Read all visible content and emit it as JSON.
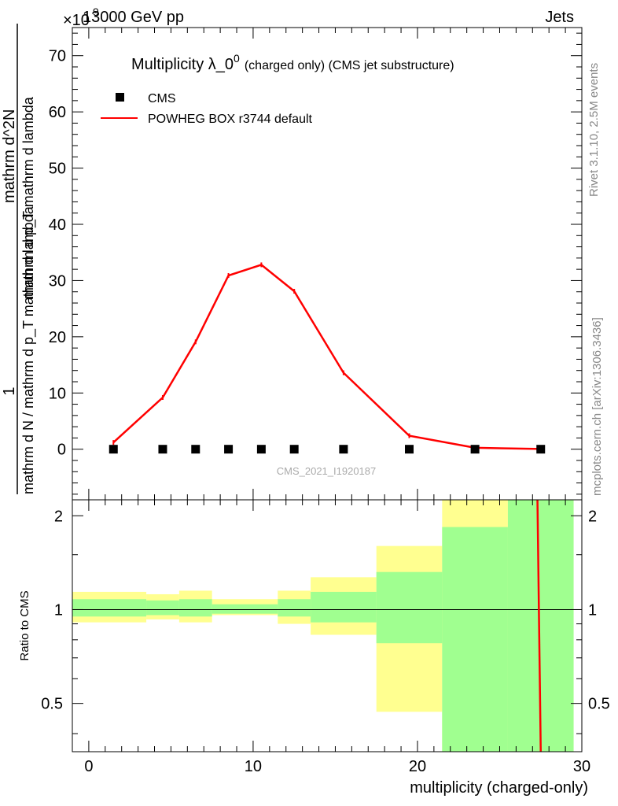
{
  "header": {
    "energy": "13000 GeV pp",
    "process": "Jets",
    "exponent": "×10",
    "exponent_power": "9"
  },
  "side_labels": {
    "rivet": "Rivet 3.1.10,  2.5M events",
    "mcplots": "mcplots.cern.ch [arXiv:1306.3436]"
  },
  "analysis_id": "CMS_2021_I1920187",
  "colors": {
    "mc": "#ff0000",
    "band_inner": "#a0ff90",
    "band_outer": "#ffff90",
    "data": "#000000"
  },
  "chart_data": [
    {
      "type": "line",
      "title": "Multiplicity λ_0^0 (charged only) (CMS jet substructure)",
      "title_main": "Multiplicity λ_0",
      "title_sup": "0",
      "title_rest": "(charged only) (CMS jet substructure)",
      "ylabel_left": "1",
      "ylabel_left_bottom": "mathrm d N / mathrm d p_T mathrm d lambda",
      "ylabel_right_num": "mathrm d^2N",
      "ylabel_right_den": "mathrm d p_T mathrm d lambda",
      "ylim": [
        -9,
        75
      ],
      "yscale_factor": 1000000000.0,
      "yticks": [
        0,
        10,
        20,
        30,
        40,
        50,
        60,
        70
      ],
      "ytick_labels": [
        "0",
        "10",
        "20",
        "30",
        "40",
        "50",
        "60",
        "70"
      ],
      "legend": [
        "CMS",
        "POWHEG BOX r3744 default"
      ],
      "legend_position": "top-left",
      "x": [
        1.5,
        4.5,
        6.5,
        8.5,
        10.5,
        12.5,
        15.5,
        19.5,
        23.5,
        27.5
      ],
      "series": [
        {
          "name": "CMS",
          "marker": "square",
          "values": [
            0,
            0,
            0,
            0,
            0,
            0,
            0,
            0,
            0,
            0
          ]
        },
        {
          "name": "POWHEG BOX r3744 default",
          "line": "solid",
          "values": [
            1.2,
            9.2,
            19.1,
            30.9,
            32.8,
            28.1,
            13.6,
            2.4,
            0.25,
            0.05
          ]
        }
      ]
    },
    {
      "type": "area",
      "title": "Ratio to CMS",
      "ylabel": "Ratio to CMS",
      "xlabel": "multiplicity (charged-only)",
      "xlim": [
        -1,
        30
      ],
      "xticks": [
        0,
        10,
        20,
        30
      ],
      "xtick_labels": [
        "0",
        "10",
        "20",
        "30"
      ],
      "ylim": [
        0.35,
        2.25
      ],
      "yticks": [
        0.5,
        1,
        2
      ],
      "ytick_labels": [
        "0.5",
        "1",
        "2"
      ],
      "bins": [
        {
          "lo": -1,
          "hi": 3.5,
          "inner": [
            0.95,
            1.08
          ],
          "outer": [
            0.91,
            1.14
          ]
        },
        {
          "lo": 3.5,
          "hi": 5.5,
          "inner": [
            0.96,
            1.07
          ],
          "outer": [
            0.93,
            1.12
          ]
        },
        {
          "lo": 5.5,
          "hi": 7.5,
          "inner": [
            0.95,
            1.08
          ],
          "outer": [
            0.91,
            1.15
          ]
        },
        {
          "lo": 7.5,
          "hi": 11.5,
          "inner": [
            0.97,
            1.04
          ],
          "outer": [
            0.96,
            1.08
          ]
        },
        {
          "lo": 11.5,
          "hi": 13.5,
          "inner": [
            0.95,
            1.08
          ],
          "outer": [
            0.9,
            1.15
          ]
        },
        {
          "lo": 13.5,
          "hi": 17.5,
          "inner": [
            0.91,
            1.14
          ],
          "outer": [
            0.83,
            1.27
          ]
        },
        {
          "lo": 17.5,
          "hi": 21.5,
          "inner": [
            0.78,
            1.32
          ],
          "outer": [
            0.47,
            1.6
          ]
        },
        {
          "lo": 21.5,
          "hi": 25.5,
          "inner": [
            0.35,
            1.84
          ],
          "outer": [
            0.35,
            2.25
          ]
        },
        {
          "lo": 25.5,
          "hi": 29.5,
          "inner": [
            0.35,
            2.25
          ],
          "outer": [
            0.35,
            2.25
          ]
        }
      ],
      "series": [
        {
          "name": "POWHEG BOX r3744 default",
          "x": [
            27.3,
            27.5
          ],
          "values": [
            2.25,
            0.35
          ]
        }
      ]
    }
  ]
}
